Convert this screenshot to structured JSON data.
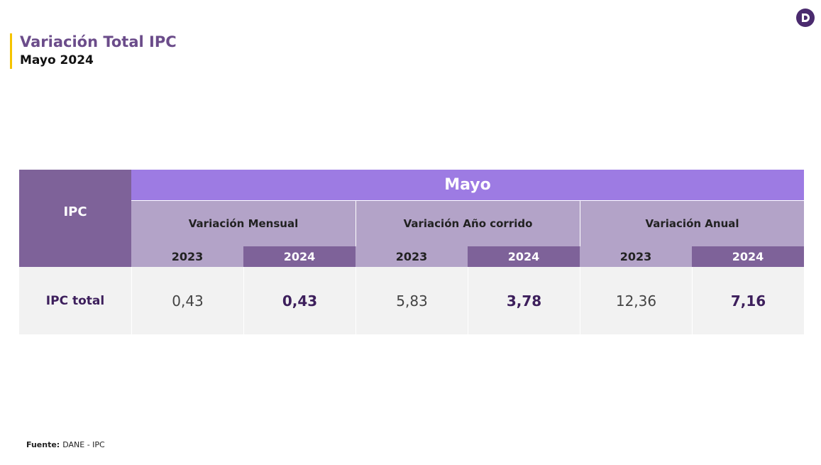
{
  "header": {
    "title": "Variación Total IPC",
    "subtitle": "Mayo 2024"
  },
  "table": {
    "corner": "IPC",
    "month": "Mayo",
    "groups": [
      {
        "label": "Variación Mensual",
        "years": [
          "2023",
          "2024"
        ]
      },
      {
        "label": "Variación Año corrido",
        "years": [
          "2023",
          "2024"
        ]
      },
      {
        "label": "Variación Anual",
        "years": [
          "2023",
          "2024"
        ]
      }
    ],
    "rows": [
      {
        "label": "IPC total",
        "cells": [
          "0,43",
          "0,43",
          "5,83",
          "3,78",
          "12,36",
          "7,16"
        ]
      }
    ]
  },
  "footer": {
    "label": "Fuente:",
    "text": "DANE - IPC"
  }
}
